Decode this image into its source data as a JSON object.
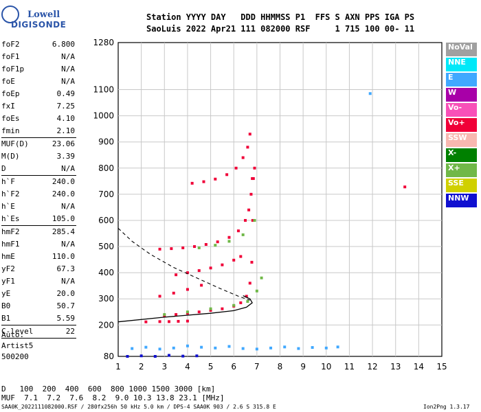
{
  "logo": {
    "line1": "Lowell",
    "line2": "DIGISONDE"
  },
  "header": {
    "line1": "Station YYYY DAY   DDD HHMMSS P1  FFS S AXN PPS IGA PS",
    "line2": "SaoLuis 2022 Apr21 111 082000 RSF     1 715 100 00- 11"
  },
  "params": [
    {
      "label": "foF2",
      "value": "6.800"
    },
    {
      "label": "foF1",
      "value": "N/A"
    },
    {
      "label": "foF1p",
      "value": "N/A"
    },
    {
      "label": "foE",
      "value": "N/A"
    },
    {
      "label": "foEp",
      "value": "0.49"
    },
    {
      "label": "fxI",
      "value": "7.25"
    },
    {
      "label": "foEs",
      "value": "4.10"
    },
    {
      "label": "fmin",
      "value": "2.10"
    },
    {
      "sep": true
    },
    {
      "label": "MUF(D)",
      "value": "23.06"
    },
    {
      "label": "M(D)",
      "value": "3.39"
    },
    {
      "label": "D",
      "value": "N/A"
    },
    {
      "sep": true
    },
    {
      "label": "h`F",
      "value": "240.0"
    },
    {
      "label": "h`F2",
      "value": "240.0"
    },
    {
      "label": "h`E",
      "value": "N/A"
    },
    {
      "label": "h`Es",
      "value": "105.0"
    },
    {
      "sep": true
    },
    {
      "label": "hmF2",
      "value": "285.4"
    },
    {
      "label": "hmF1",
      "value": "N/A"
    },
    {
      "label": "hmE",
      "value": "110.0"
    },
    {
      "label": "yF2",
      "value": "67.3"
    },
    {
      "label": "yF1",
      "value": "N/A"
    },
    {
      "label": "yE",
      "value": "20.0"
    },
    {
      "label": "B0",
      "value": "50.7"
    },
    {
      "label": "B1",
      "value": "5.59"
    },
    {
      "sep": true
    },
    {
      "label": "C-level",
      "value": "22"
    },
    {
      "sep": true
    }
  ],
  "auto": {
    "line1": "Auto:",
    "line2": "Artist5",
    "line3": "500200"
  },
  "footer": {
    "d_row": "D   100  200  400  600  800 1000 1500 3000 [km]",
    "muf_row": "MUF  7.1  7.2  7.6  8.2  9.0 10.3 13.8 23.1 [MHz]",
    "info_left": "SAA0K_2022111082000.RSF / 280fx256h 50 kHz 5.0 km / DPS-4 SAA0K 903 / 2.6 S 315.8 E",
    "info_right": "Ion2Png 1.3.17"
  },
  "legend": [
    {
      "label": "NoVal",
      "color": "#a0a0a0"
    },
    {
      "label": "NNE",
      "color": "#00e8f8"
    },
    {
      "label": "E",
      "color": "#40a8ff"
    },
    {
      "label": "W",
      "color": "#a800a8"
    },
    {
      "label": "Vo-",
      "color": "#f850b8"
    },
    {
      "label": "Vo+",
      "color": "#f00038"
    },
    {
      "label": "SSW",
      "color": "#f8b8b0"
    },
    {
      "label": "X-",
      "color": "#008000"
    },
    {
      "label": "X+",
      "color": "#70b848"
    },
    {
      "label": "SSE",
      "color": "#d0d000"
    },
    {
      "label": "NNW",
      "color": "#1010d0"
    }
  ],
  "chart_data": {
    "type": "scatter",
    "title": "",
    "xlabel": "",
    "ylabel": "",
    "xlim": [
      1,
      15
    ],
    "ylim": [
      80,
      1280
    ],
    "xticks": [
      "1",
      "2",
      "3",
      "4",
      "5",
      "6",
      "7",
      "8",
      "9",
      "10",
      "11",
      "12",
      "13",
      "14",
      "15"
    ],
    "yticks": [
      "80",
      "200",
      "300",
      "400",
      "500",
      "600",
      "700",
      "800",
      "900",
      "1000",
      "1100",
      "1280"
    ],
    "grid": true,
    "series": [
      {
        "color": "#f00038",
        "points": [
          [
            2.2,
            212
          ],
          [
            2.8,
            213
          ],
          [
            3.2,
            213
          ],
          [
            3.6,
            214
          ],
          [
            4.0,
            215
          ]
        ]
      },
      {
        "color": "#f00038",
        "points": [
          [
            3.0,
            236
          ],
          [
            3.5,
            240
          ],
          [
            4.0,
            245
          ],
          [
            4.5,
            250
          ],
          [
            5.0,
            256
          ],
          [
            5.5,
            262
          ],
          [
            6.0,
            272
          ],
          [
            6.3,
            285
          ],
          [
            6.55,
            310
          ],
          [
            6.7,
            360
          ],
          [
            6.78,
            440
          ],
          [
            6.82,
            600
          ],
          [
            6.85,
            760
          ],
          [
            6.9,
            800
          ]
        ]
      },
      {
        "color": "#f00038",
        "points": [
          [
            2.8,
            490
          ],
          [
            3.3,
            492
          ],
          [
            3.8,
            495
          ],
          [
            4.3,
            500
          ],
          [
            4.8,
            508
          ],
          [
            5.3,
            518
          ],
          [
            5.8,
            535
          ],
          [
            6.2,
            560
          ],
          [
            6.5,
            600
          ],
          [
            6.65,
            640
          ],
          [
            6.75,
            700
          ],
          [
            6.8,
            760
          ]
        ]
      },
      {
        "color": "#f00038",
        "points": [
          [
            3.5,
            392
          ],
          [
            4.0,
            400
          ],
          [
            4.5,
            408
          ],
          [
            5.0,
            418
          ],
          [
            5.5,
            430
          ],
          [
            6.0,
            448
          ],
          [
            6.3,
            462
          ]
        ]
      },
      {
        "color": "#f00038",
        "points": [
          [
            4.2,
            742
          ],
          [
            4.7,
            748
          ],
          [
            5.2,
            758
          ],
          [
            5.7,
            775
          ],
          [
            6.1,
            800
          ],
          [
            6.4,
            840
          ],
          [
            6.6,
            880
          ],
          [
            6.7,
            930
          ]
        ]
      },
      {
        "color": "#f00038",
        "points": [
          [
            2.8,
            310
          ],
          [
            3.4,
            322
          ],
          [
            4.0,
            336
          ],
          [
            4.6,
            352
          ]
        ]
      },
      {
        "color": "#70b848",
        "points": [
          [
            3.0,
            240
          ],
          [
            4.0,
            250
          ],
          [
            5.0,
            262
          ],
          [
            6.0,
            275
          ],
          [
            6.6,
            290
          ],
          [
            7.0,
            330
          ],
          [
            7.2,
            380
          ]
        ]
      },
      {
        "color": "#70b848",
        "points": [
          [
            4.5,
            495
          ],
          [
            5.2,
            505
          ],
          [
            5.8,
            520
          ],
          [
            6.4,
            545
          ],
          [
            6.9,
            600
          ]
        ]
      },
      {
        "color": "#40a8ff",
        "points": [
          [
            1.6,
            110
          ],
          [
            2.2,
            115
          ],
          [
            2.8,
            108
          ],
          [
            3.4,
            112
          ],
          [
            4.0,
            120
          ],
          [
            4.6,
            115
          ],
          [
            5.2,
            112
          ],
          [
            5.8,
            118
          ],
          [
            6.4,
            110
          ],
          [
            7.0,
            108
          ],
          [
            7.6,
            112
          ],
          [
            8.2,
            116
          ],
          [
            8.8,
            110
          ],
          [
            9.4,
            114
          ],
          [
            10.0,
            112
          ],
          [
            10.5,
            116
          ]
        ]
      },
      {
        "color": "#40a8ff",
        "points": [
          [
            11.9,
            1085
          ]
        ]
      },
      {
        "color": "#1010d0",
        "points": [
          [
            1.4,
            80
          ],
          [
            2.0,
            82
          ],
          [
            2.6,
            80
          ],
          [
            3.2,
            84
          ],
          [
            3.8,
            81
          ],
          [
            4.4,
            82
          ]
        ]
      },
      {
        "color": "#f00038",
        "points": [
          [
            13.4,
            728
          ]
        ]
      }
    ],
    "profile_solid": [
      [
        1.0,
        212
      ],
      [
        3.0,
        230
      ],
      [
        5.0,
        245
      ],
      [
        6.0,
        255
      ],
      [
        6.55,
        268
      ],
      [
        6.8,
        285
      ],
      [
        6.7,
        300
      ],
      [
        6.4,
        312
      ]
    ],
    "profile_dashed": [
      [
        1.0,
        570
      ],
      [
        1.6,
        520
      ],
      [
        2.4,
        470
      ],
      [
        3.4,
        420
      ],
      [
        4.4,
        380
      ],
      [
        5.4,
        340
      ],
      [
        6.2,
        310
      ],
      [
        6.7,
        295
      ]
    ]
  }
}
